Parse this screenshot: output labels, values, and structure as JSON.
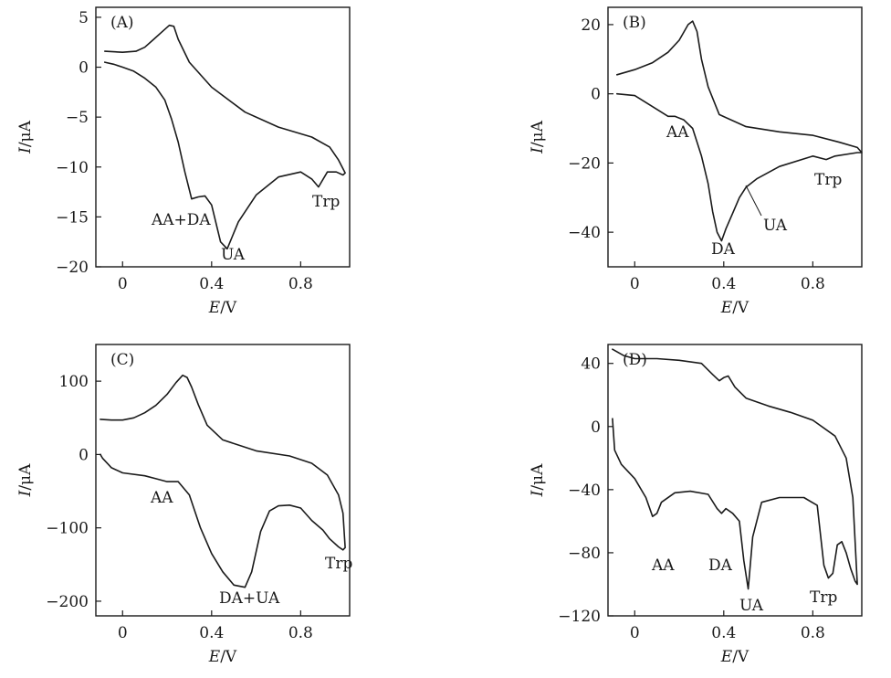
{
  "chart_data": [
    {
      "type": "line",
      "panel_label": "(A)",
      "xlabel": "E/V",
      "ylabel": "I/μA",
      "xlim": [
        -0.12,
        1.02
      ],
      "ylim": [
        -20,
        6
      ],
      "xticks": [
        0,
        0.4,
        0.8
      ],
      "xtick_labels": [
        "0",
        "0.4",
        "0.8"
      ],
      "yticks": [
        -20,
        -15,
        -10,
        -5,
        0,
        5
      ],
      "ytick_labels": [
        "−20",
        "−15",
        "−10",
        "−5",
        "0",
        "5"
      ],
      "curve": {
        "x": [
          -0.08,
          0.0,
          0.06,
          0.1,
          0.14,
          0.18,
          0.21,
          0.23,
          0.25,
          0.3,
          0.4,
          0.55,
          0.7,
          0.85,
          0.93,
          0.97,
          1.0,
          0.99,
          0.96,
          0.92,
          0.88,
          0.85,
          0.8,
          0.7,
          0.6,
          0.52,
          0.47,
          0.44,
          0.4,
          0.37,
          0.34,
          0.31,
          0.28,
          0.25,
          0.22,
          0.19,
          0.15,
          0.1,
          0.05,
          0.0,
          -0.04,
          -0.08
        ],
        "y": [
          1.6,
          1.5,
          1.6,
          2.0,
          2.8,
          3.6,
          4.2,
          4.1,
          2.8,
          0.5,
          -2.0,
          -4.5,
          -6.0,
          -7.0,
          -8.0,
          -9.3,
          -10.6,
          -10.8,
          -10.5,
          -10.5,
          -12.0,
          -11.2,
          -10.5,
          -11.0,
          -12.8,
          -15.5,
          -18.2,
          -17.5,
          -13.8,
          -12.9,
          -13.0,
          -13.2,
          -10.5,
          -7.5,
          -5.2,
          -3.3,
          -2.0,
          -1.1,
          -0.4,
          0.0,
          0.3,
          0.5
        ]
      },
      "annotations": [
        "AA+DA",
        "UA",
        "Trp"
      ]
    },
    {
      "type": "line",
      "panel_label": "(B)",
      "xlabel": "E/V",
      "ylabel": "I/μA",
      "xlim": [
        -0.12,
        1.02
      ],
      "ylim": [
        -50,
        25
      ],
      "xticks": [
        0,
        0.4,
        0.8
      ],
      "xtick_labels": [
        "0",
        "0.4",
        "0.8"
      ],
      "yticks": [
        -40,
        -20,
        0,
        20
      ],
      "ytick_labels": [
        "−40",
        "−20",
        "0",
        "20"
      ],
      "curve": {
        "x": [
          -0.08,
          0.0,
          0.08,
          0.15,
          0.2,
          0.24,
          0.26,
          0.28,
          0.3,
          0.33,
          0.38,
          0.5,
          0.65,
          0.8,
          0.92,
          1.0,
          1.02,
          1.0,
          0.9,
          0.86,
          0.8,
          0.65,
          0.55,
          0.5,
          0.47,
          0.44,
          0.41,
          0.39,
          0.37,
          0.35,
          0.33,
          0.3,
          0.26,
          0.22,
          0.18,
          0.15,
          0.1,
          0.0,
          -0.08
        ],
        "y": [
          5.5,
          7.0,
          9.0,
          12.0,
          15.5,
          20.0,
          21.0,
          18.0,
          10.0,
          2.0,
          -6.0,
          -9.5,
          -11.0,
          -12.0,
          -14.0,
          -15.5,
          -17.0,
          -17.0,
          -18.0,
          -19.0,
          -18.0,
          -21.0,
          -24.5,
          -27.0,
          -30.0,
          -34.5,
          -39.0,
          -42.5,
          -40.0,
          -34.0,
          -26.0,
          -18.0,
          -10.0,
          -7.5,
          -6.5,
          -6.5,
          -4.5,
          -0.5,
          0.0
        ]
      },
      "annotations": [
        "AA",
        "DA",
        "UA",
        "Trp"
      ]
    },
    {
      "type": "line",
      "panel_label": "(C)",
      "xlabel": "E/V",
      "ylabel": "I/μA",
      "xlim": [
        -0.12,
        1.02
      ],
      "ylim": [
        -220,
        150
      ],
      "xticks": [
        0,
        0.4,
        0.8
      ],
      "xtick_labels": [
        "0",
        "0.4",
        "0.8"
      ],
      "yticks": [
        -200,
        -100,
        0,
        100
      ],
      "ytick_labels": [
        "−200",
        "−100",
        "0",
        "100"
      ],
      "curve": {
        "x": [
          -0.1,
          -0.05,
          0.0,
          0.05,
          0.1,
          0.15,
          0.2,
          0.24,
          0.27,
          0.29,
          0.31,
          0.34,
          0.38,
          0.45,
          0.6,
          0.75,
          0.85,
          0.92,
          0.97,
          0.99,
          1.0,
          0.99,
          0.97,
          0.93,
          0.9,
          0.85,
          0.8,
          0.75,
          0.7,
          0.66,
          0.62,
          0.58,
          0.55,
          0.5,
          0.45,
          0.4,
          0.35,
          0.3,
          0.25,
          0.2,
          0.15,
          0.1,
          0.0,
          -0.05,
          -0.09,
          -0.1
        ],
        "y": [
          48,
          47,
          47,
          50,
          57,
          67,
          82,
          98,
          108,
          105,
          92,
          68,
          40,
          20,
          5,
          -2,
          -12,
          -28,
          -55,
          -80,
          -127,
          -130,
          -126,
          -115,
          -103,
          -90,
          -73,
          -69,
          -70,
          -77,
          -105,
          -160,
          -181,
          -178,
          -160,
          -135,
          -100,
          -55,
          -37,
          -37,
          -33,
          -29,
          -25,
          -18,
          -5,
          0
        ]
      },
      "annotations": [
        "AA",
        "DA+UA",
        "Trp"
      ]
    },
    {
      "type": "line",
      "panel_label": "(D)",
      "xlabel": "E/V",
      "ylabel": "I/μA",
      "xlim": [
        -0.12,
        1.02
      ],
      "ylim": [
        -120,
        52
      ],
      "xticks": [
        0,
        0.4,
        0.8
      ],
      "xtick_labels": [
        "0",
        "0.4",
        "0.8"
      ],
      "yticks": [
        -120,
        -80,
        -40,
        0,
        40
      ],
      "ytick_labels": [
        "−120",
        "−80",
        "−40",
        "0",
        "40"
      ],
      "curve": {
        "x": [
          -0.1,
          -0.05,
          0.0,
          0.1,
          0.2,
          0.3,
          0.35,
          0.38,
          0.4,
          0.42,
          0.45,
          0.5,
          0.6,
          0.7,
          0.8,
          0.9,
          0.95,
          0.98,
          1.0,
          0.99,
          0.97,
          0.95,
          0.93,
          0.91,
          0.89,
          0.87,
          0.85,
          0.82,
          0.76,
          0.65,
          0.57,
          0.53,
          0.51,
          0.49,
          0.47,
          0.44,
          0.41,
          0.39,
          0.37,
          0.33,
          0.25,
          0.18,
          0.12,
          0.1,
          0.08,
          0.05,
          0.0,
          -0.06,
          -0.09,
          -0.1
        ],
        "y": [
          49,
          45,
          43,
          43,
          42,
          40,
          33,
          29,
          31,
          32,
          25,
          18,
          13,
          9,
          4,
          -6,
          -20,
          -45,
          -100,
          -98,
          -90,
          -80,
          -73,
          -75,
          -93,
          -96,
          -88,
          -50,
          -45,
          -45,
          -48,
          -70,
          -103,
          -85,
          -60,
          -55,
          -52,
          -55,
          -52,
          -43,
          -41,
          -42,
          -48,
          -55,
          -57,
          -45,
          -33,
          -24,
          -15,
          5
        ]
      },
      "annotations": [
        "AA",
        "DA",
        "UA",
        "Trp"
      ]
    }
  ]
}
